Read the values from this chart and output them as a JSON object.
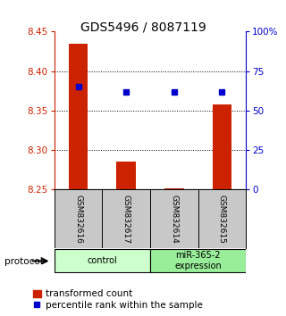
{
  "title": "GDS5496 / 8087119",
  "samples": [
    "GSM832616",
    "GSM832617",
    "GSM832614",
    "GSM832615"
  ],
  "transformed_counts": [
    8.435,
    8.285,
    8.252,
    8.358
  ],
  "percentile_ranks": [
    65,
    62,
    62,
    62
  ],
  "baseline": 8.25,
  "left_ylim": [
    8.25,
    8.45
  ],
  "right_ylim": [
    0,
    100
  ],
  "left_yticks": [
    8.25,
    8.3,
    8.35,
    8.4,
    8.45
  ],
  "right_yticks": [
    0,
    25,
    50,
    75,
    100
  ],
  "right_yticklabels": [
    "0",
    "25",
    "50",
    "75",
    "100%"
  ],
  "groups": [
    {
      "label": "control",
      "samples": [
        0,
        1
      ],
      "color": "#ccffcc"
    },
    {
      "label": "miR-365-2\nexpression",
      "samples": [
        2,
        3
      ],
      "color": "#99ee99"
    }
  ],
  "bar_color": "#cc2200",
  "dot_color": "#0000cc",
  "protocol_label": "protocol",
  "legend_bar_label": "transformed count",
  "legend_dot_label": "percentile rank within the sample",
  "bg_color": "#ffffff",
  "label_area_bg": "#c8c8c8",
  "title_fontsize": 10,
  "axis_fontsize": 7.5,
  "legend_fontsize": 7.5,
  "sample_fontsize": 6.5
}
